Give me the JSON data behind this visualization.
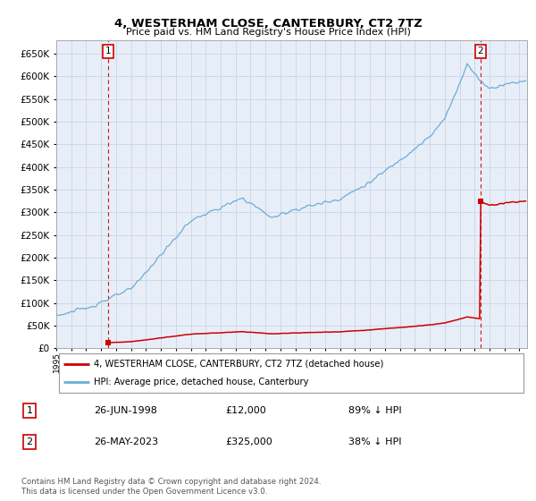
{
  "title": "4, WESTERHAM CLOSE, CANTERBURY, CT2 7TZ",
  "subtitle": "Price paid vs. HM Land Registry's House Price Index (HPI)",
  "hpi_label": "HPI: Average price, detached house, Canterbury",
  "property_label": "4, WESTERHAM CLOSE, CANTERBURY, CT2 7TZ (detached house)",
  "footer1": "Contains HM Land Registry data © Crown copyright and database right 2024.",
  "footer2": "This data is licensed under the Open Government Licence v3.0.",
  "annotation1": {
    "num": "1",
    "date": "26-JUN-1998",
    "price": "£12,000",
    "hpi": "89% ↓ HPI"
  },
  "annotation2": {
    "num": "2",
    "date": "26-MAY-2023",
    "price": "£325,000",
    "hpi": "38% ↓ HPI"
  },
  "sale1_year": 1998.49,
  "sale1_price": 12000,
  "sale2_year": 2023.4,
  "sale2_price": 325000,
  "hpi_line_color": "#6baed6",
  "sale_line_color": "#cc0000",
  "background_color": "#ffffff",
  "plot_bg_color": "#e8eef8",
  "grid_color": "#c8d4e8",
  "ylim_min": 0,
  "ylim_max": 680000,
  "xlim_min": 1995,
  "xlim_max": 2026.5
}
